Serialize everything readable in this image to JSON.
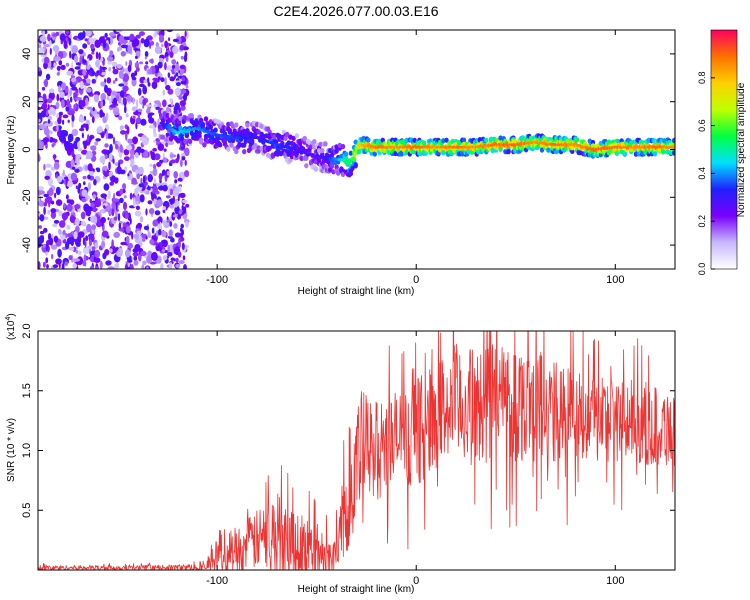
{
  "title": "C2E4.2026.077.00.03.E16",
  "chart_data": [
    {
      "type": "heatmap",
      "title": "C2E4.2026.077.00.03.E16",
      "xlabel": "Height of straight line (km)",
      "ylabel": "Frequency (Hz)",
      "xlim": [
        -190,
        130
      ],
      "ylim": [
        -50,
        50
      ],
      "xticks": [
        -100,
        0,
        100
      ],
      "xtick_labels": [
        "-100",
        "0",
        "100"
      ],
      "yticks": [
        -40,
        -20,
        0,
        20,
        40
      ],
      "ytick_labels": [
        "-40",
        "-20",
        "0",
        "20",
        "40"
      ],
      "ridge": {
        "x": [
          -128,
          -120,
          -110,
          -100,
          -90,
          -80,
          -70,
          -60,
          -50,
          -40,
          -33,
          -28,
          -20,
          -10,
          0,
          10,
          20,
          30,
          40,
          50,
          60,
          70,
          80,
          90,
          100,
          110,
          120,
          130
        ],
        "freq": [
          11,
          7,
          9,
          6,
          5,
          5,
          2,
          0,
          -3,
          -4,
          -5,
          2,
          1,
          1,
          1,
          1,
          1,
          1,
          2,
          2,
          3,
          2,
          2,
          0,
          1,
          1,
          1,
          1
        ],
        "amplitude": [
          0.3,
          0.45,
          0.4,
          0.35,
          0.35,
          0.3,
          0.35,
          0.3,
          0.25,
          0.4,
          0.55,
          0.8,
          0.9,
          0.85,
          0.9,
          0.85,
          0.9,
          0.85,
          0.9,
          0.9,
          0.85,
          0.9,
          0.85,
          0.9,
          0.9,
          0.85,
          0.9,
          0.85
        ]
      },
      "noise_region_x": [
        -190,
        -115
      ],
      "colorbar": {
        "label": "Normalized spectral amplitude",
        "range": [
          0,
          1
        ],
        "ticks": [
          0.0,
          0.2,
          0.4,
          0.6,
          0.8
        ],
        "tick_labels": [
          "0.0",
          "0.2",
          "0.4",
          "0.6",
          "0.8"
        ],
        "colors": [
          "#ffffff",
          "#c8b8ff",
          "#7a00ff",
          "#2020ff",
          "#00e0ff",
          "#00ff40",
          "#c0ff00",
          "#ffd000",
          "#ff7000",
          "#ff0060"
        ]
      }
    },
    {
      "type": "line",
      "xlabel": "Height of straight line (km)",
      "ylabel": "SNR (10 * v/v)",
      "scale_label": "(x10",
      "scale_exp": "4",
      "xlim": [
        -190,
        130
      ],
      "ylim": [
        0,
        20000
      ],
      "xticks": [
        -100,
        0,
        100
      ],
      "xtick_labels": [
        "-100",
        "0",
        "100"
      ],
      "yticks": [
        5000,
        10000,
        15000,
        20000
      ],
      "ytick_labels": [
        "0.5",
        "1.0",
        "1.5",
        "2.0"
      ],
      "series": [
        {
          "name": "SNR",
          "color": "#ee3333",
          "envelope_x": [
            -190,
            -130,
            -105,
            -100,
            -90,
            -80,
            -70,
            -60,
            -50,
            -42,
            -37,
            -33,
            -30,
            -27,
            -24,
            -20,
            -15,
            -10,
            -5,
            0,
            10,
            20,
            30,
            40,
            50,
            60,
            70,
            80,
            90,
            100,
            110,
            120,
            130
          ],
          "envelope_y": [
            200,
            200,
            250,
            1600,
            1700,
            2500,
            3200,
            2200,
            1600,
            1000,
            4000,
            6500,
            8500,
            10500,
            10000,
            10000,
            10500,
            11000,
            11000,
            11500,
            13000,
            14000,
            13500,
            14500,
            14000,
            14000,
            13000,
            13000,
            13000,
            12500,
            12500,
            12000,
            12000
          ],
          "spread_y": [
            200,
            200,
            300,
            1800,
            2000,
            2500,
            3500,
            3000,
            2500,
            1200,
            3500,
            4500,
            5000,
            5000,
            4500,
            4200,
            4000,
            4200,
            4200,
            4500,
            4500,
            5000,
            5000,
            5500,
            5000,
            5000,
            4500,
            4000,
            4000,
            3500,
            3500,
            3500,
            3500
          ]
        }
      ]
    }
  ]
}
